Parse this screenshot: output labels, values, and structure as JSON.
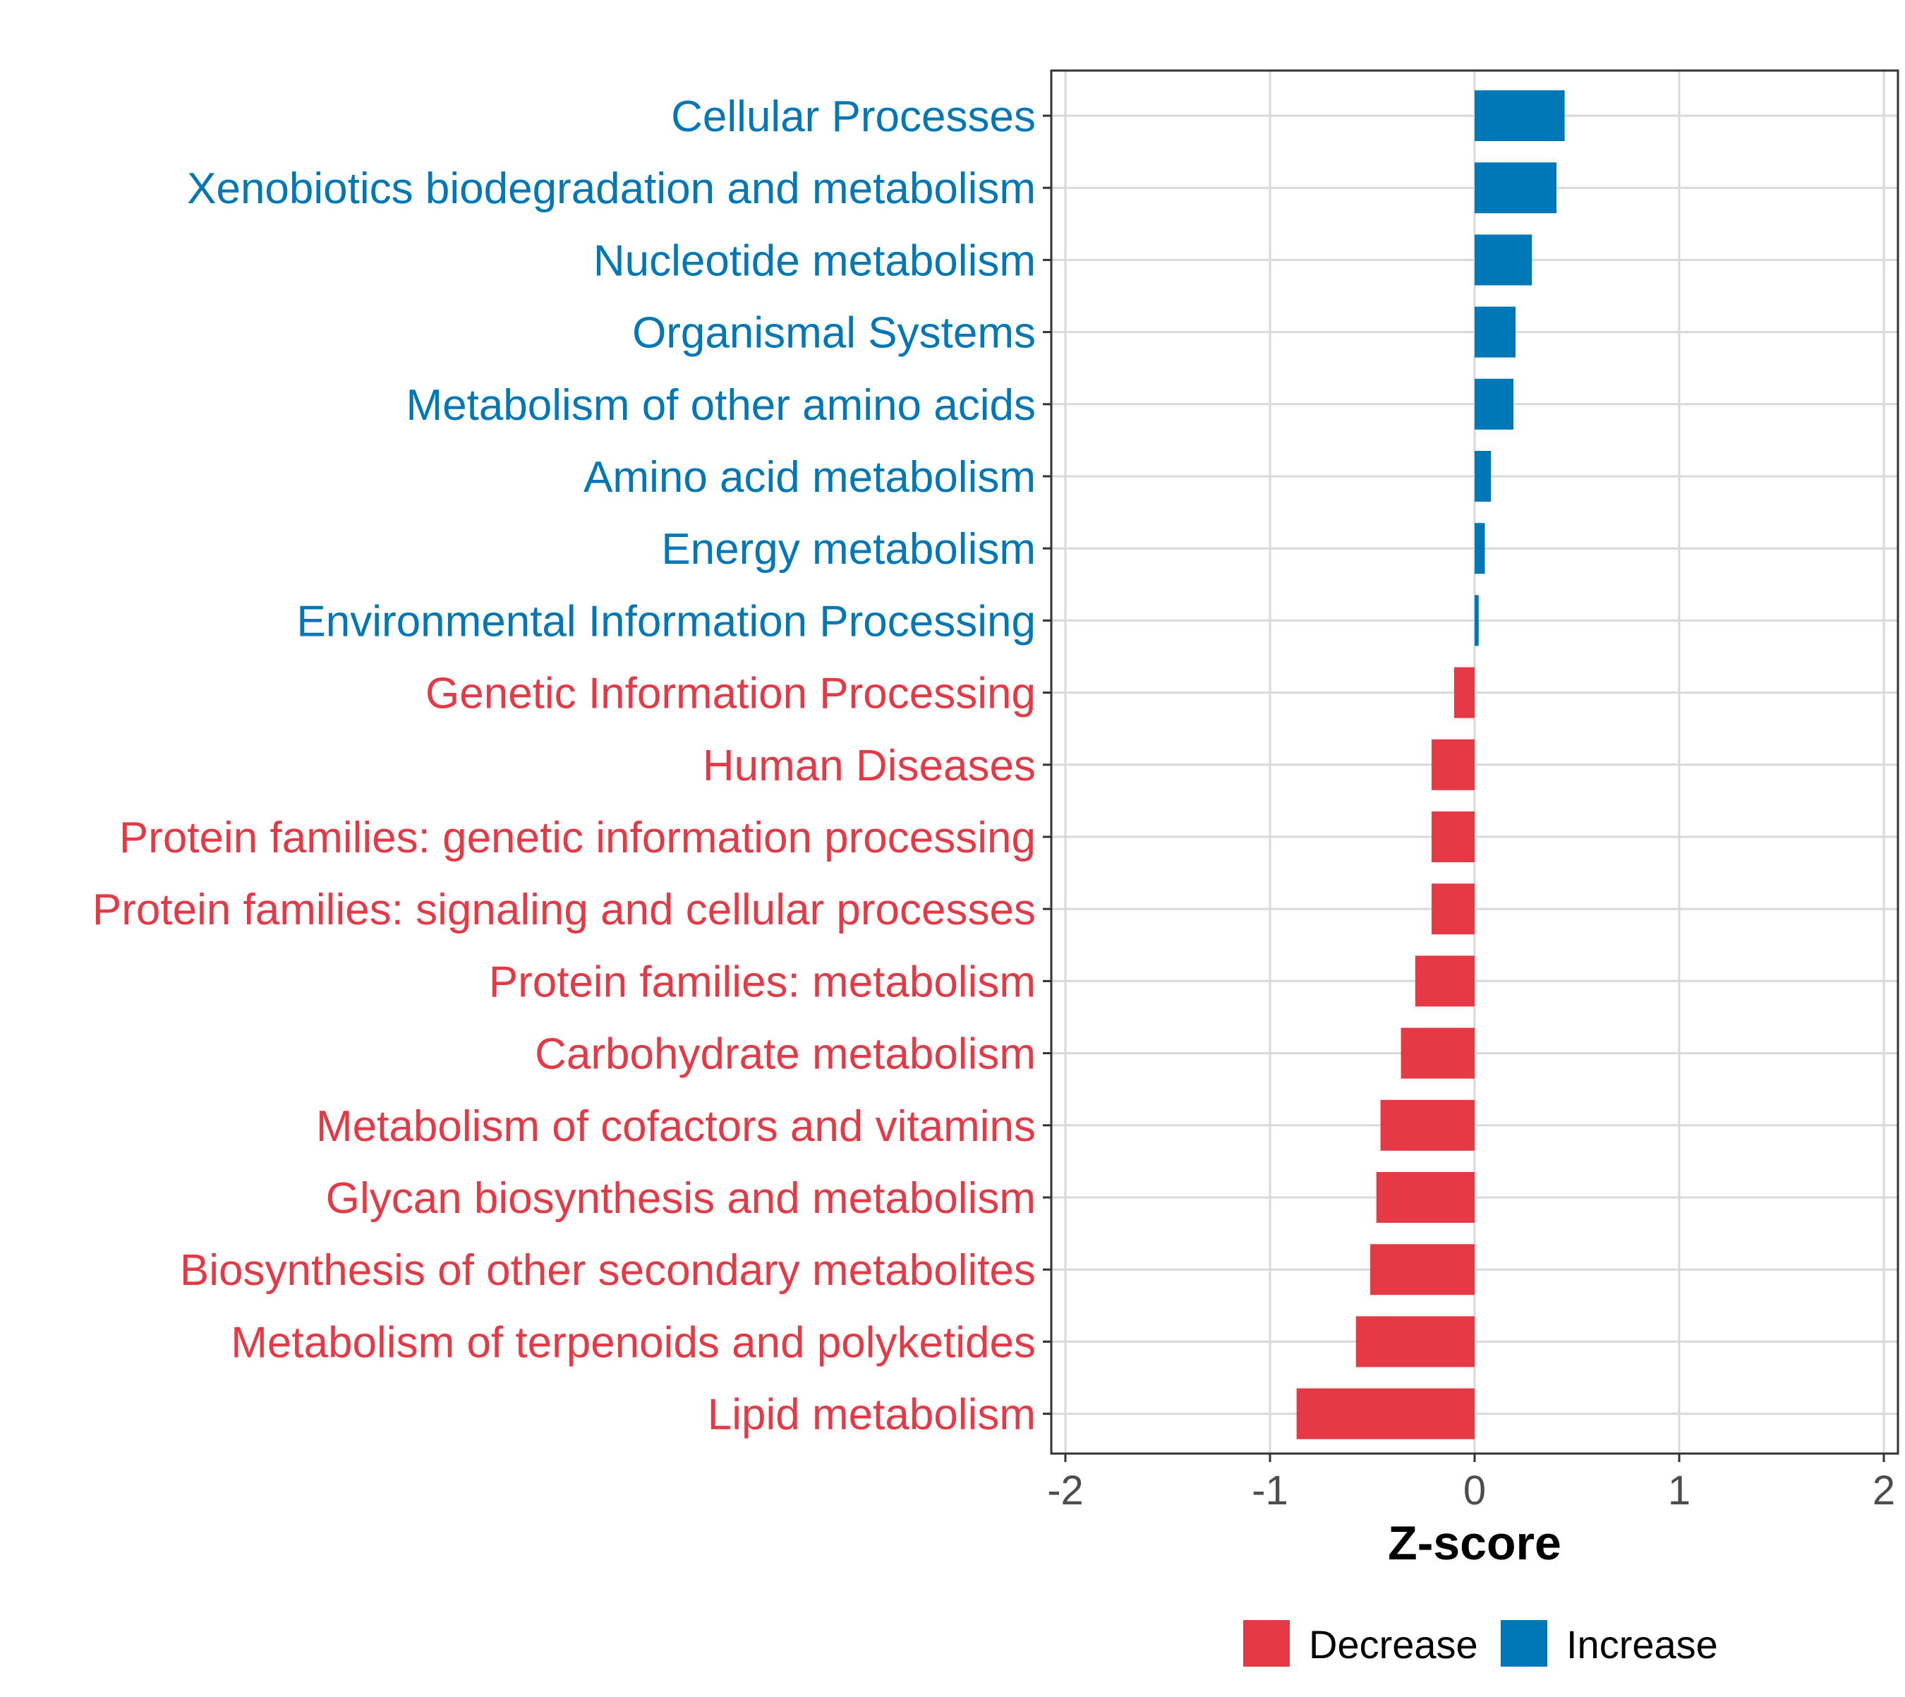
{
  "colors": {
    "decrease": "#E63946",
    "increase": "#0077B6",
    "tick_text": "#4d4d4d",
    "axis_title": "#000000",
    "grid": "#d9d9d9",
    "frame": "#333333"
  },
  "chart_data": {
    "type": "bar",
    "orientation": "horizontal",
    "title": "",
    "xlabel": "Z-score",
    "ylabel": "",
    "xlim": [
      -2,
      2
    ],
    "xticks": [
      -2,
      -1,
      0,
      1,
      2
    ],
    "xtick_labels": [
      "-2",
      "-1",
      "0",
      "1",
      "2"
    ],
    "grid": true,
    "legend_position": "bottom",
    "legend": [
      {
        "name": "Decrease",
        "color": "#E63946"
      },
      {
        "name": "Increase",
        "color": "#0077B6"
      }
    ],
    "categories": [
      "Cellular Processes",
      "Xenobiotics biodegradation and metabolism",
      "Nucleotide metabolism",
      "Organismal Systems",
      "Metabolism of other amino acids",
      "Amino acid metabolism",
      "Energy metabolism",
      "Environmental Information Processing",
      "Genetic Information Processing",
      "Human Diseases",
      "Protein families: genetic information processing",
      "Protein families: signaling and cellular processes",
      "Protein families: metabolism",
      "Carbohydrate metabolism",
      "Metabolism of cofactors and vitamins",
      "Glycan biosynthesis and metabolism",
      "Biosynthesis of other secondary metabolites",
      "Metabolism of terpenoids and polyketides",
      "Lipid metabolism"
    ],
    "values": [
      0.44,
      0.4,
      0.28,
      0.2,
      0.19,
      0.08,
      0.05,
      0.02,
      -0.1,
      -0.21,
      -0.21,
      -0.21,
      -0.29,
      -0.36,
      -0.46,
      -0.48,
      -0.51,
      -0.58,
      -0.87
    ],
    "groups": [
      "Increase",
      "Increase",
      "Increase",
      "Increase",
      "Increase",
      "Increase",
      "Increase",
      "Increase",
      "Decrease",
      "Decrease",
      "Decrease",
      "Decrease",
      "Decrease",
      "Decrease",
      "Decrease",
      "Decrease",
      "Decrease",
      "Decrease",
      "Decrease"
    ]
  }
}
